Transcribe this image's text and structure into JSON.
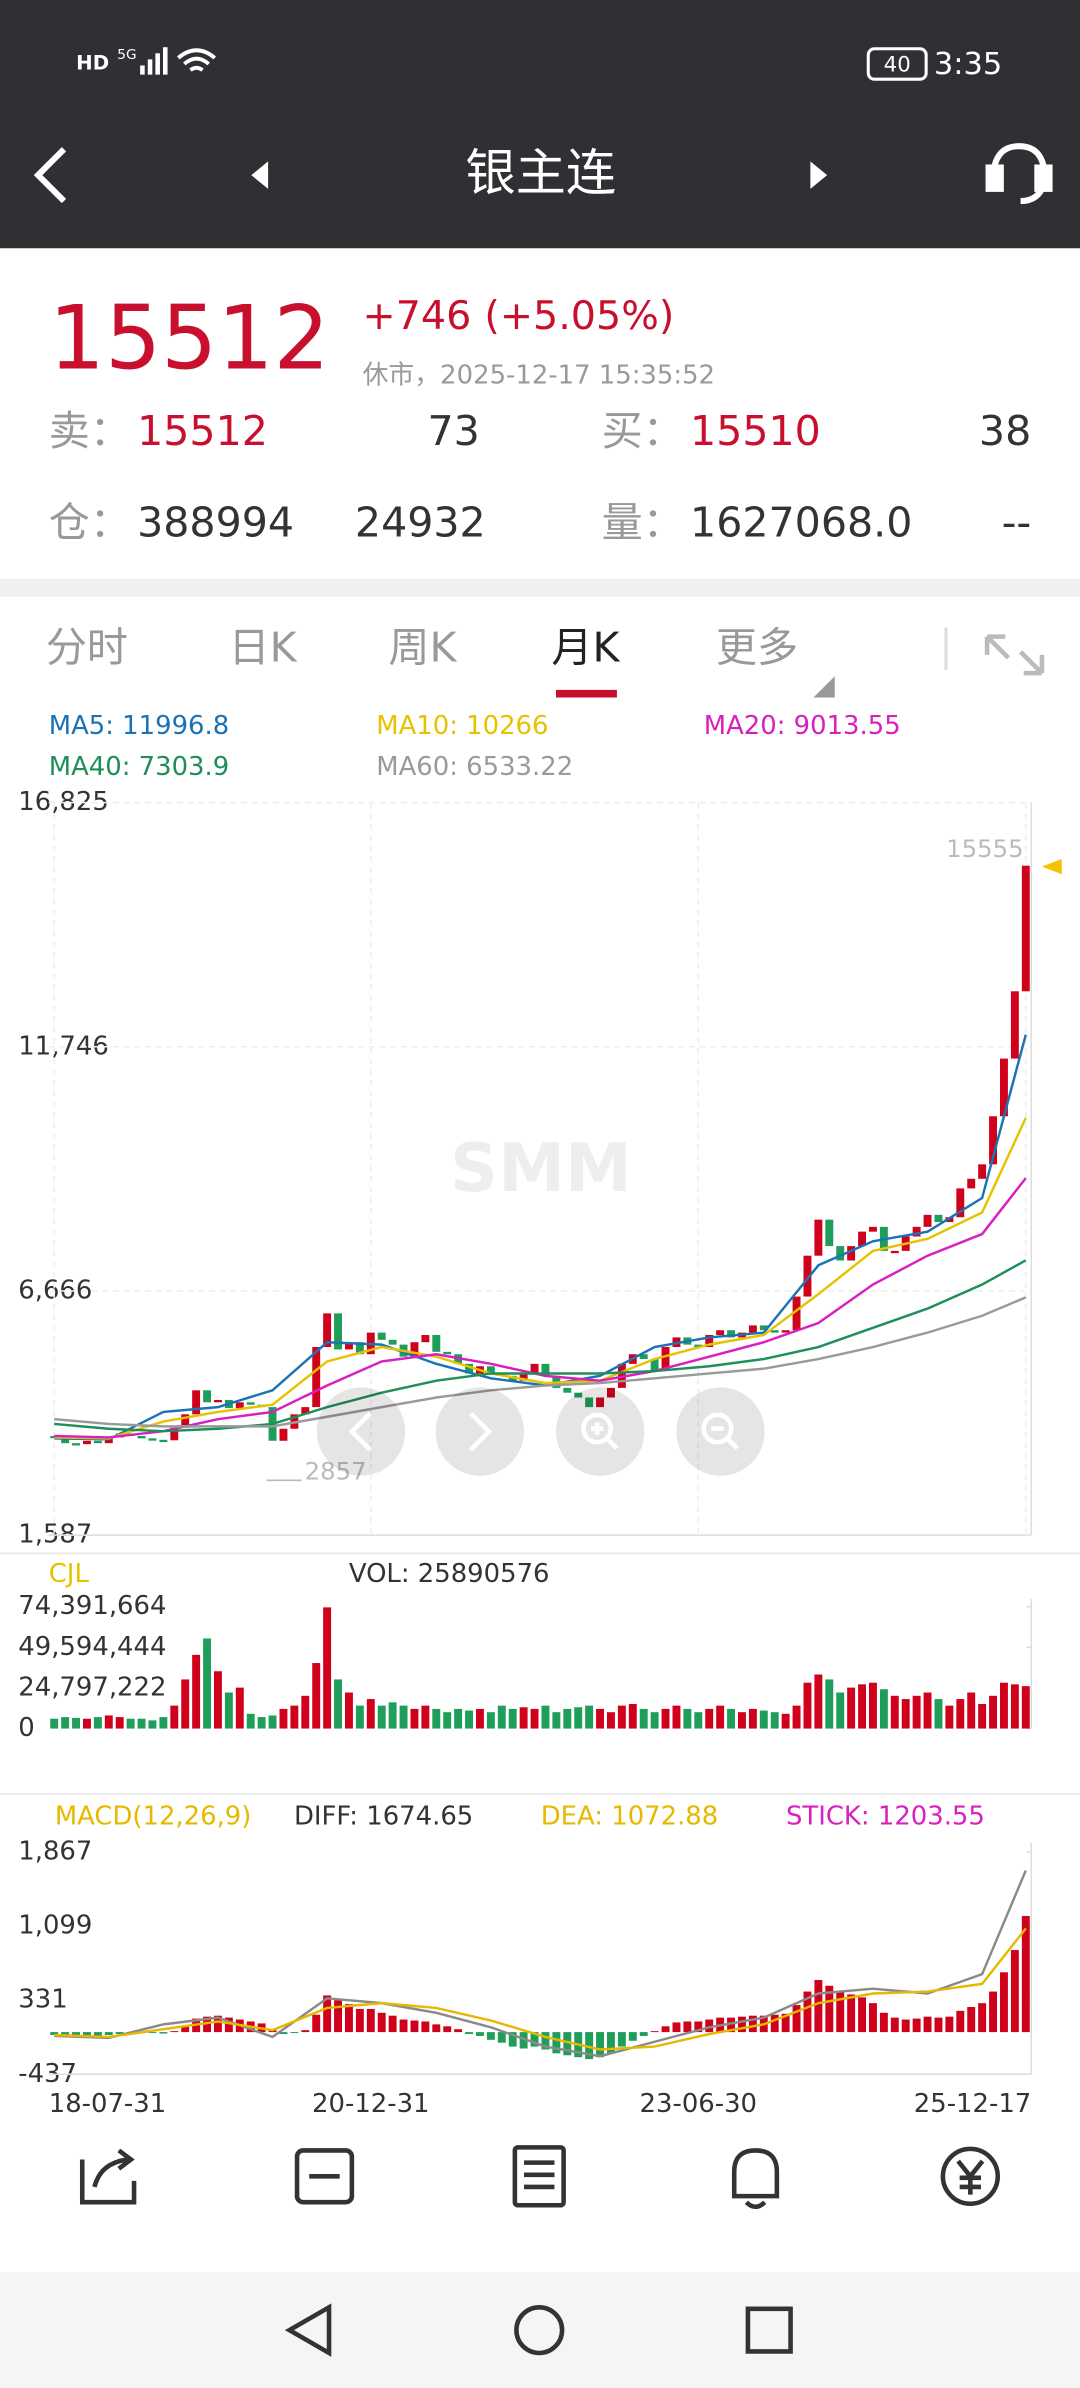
{
  "status_bar": {
    "left": "HD",
    "network": "5G",
    "battery": "40",
    "time": "3:35"
  },
  "header": {
    "title": "银主连"
  },
  "quote": {
    "last": 15512,
    "change": "+746",
    "change_pct": "(+5.05%)",
    "time": "休市，2025-12-17 15:35:52",
    "sell_label": "卖：",
    "sell_price": 15512,
    "sell_qty": 73,
    "buy_label": "买：",
    "buy_price": 15510,
    "buy_qty": 38,
    "oi_label": "仓：",
    "oi": 388994,
    "oi_change": 24932,
    "vol_label": "量：",
    "vol": "1627068.0",
    "vol_extra": "--"
  },
  "tabs": {
    "items": [
      "分时",
      "日K",
      "周K",
      "月K",
      "更多"
    ],
    "active": 3
  },
  "watermark": "SMM",
  "chart_data": [
    {
      "type": "candlestick",
      "categories": [
        "18-07-31",
        null,
        null,
        null,
        null,
        null,
        null,
        null,
        null,
        null,
        null,
        null,
        null,
        null,
        null,
        null,
        null,
        null,
        null,
        null,
        null,
        null,
        null,
        null,
        null,
        null,
        null,
        null,
        null,
        "20-12-31",
        null,
        null,
        null,
        null,
        null,
        null,
        null,
        null,
        null,
        null,
        null,
        null,
        null,
        null,
        null,
        null,
        null,
        null,
        null,
        null,
        null,
        null,
        null,
        null,
        null,
        null,
        null,
        null,
        null,
        "23-06-30",
        null,
        null,
        null,
        null,
        null,
        null,
        null,
        null,
        null,
        null,
        null,
        null,
        null,
        null,
        null,
        null,
        null,
        null,
        null,
        null,
        null,
        null,
        null,
        null,
        null,
        null,
        null,
        null,
        null,
        "25-12-17"
      ],
      "close": [
        3650,
        3500,
        3480,
        3550,
        3500,
        3620,
        3700,
        3650,
        3600,
        3570,
        3560,
        3820,
        4100,
        4600,
        4350,
        4400,
        4230,
        4350,
        4300,
        4250,
        3550,
        3800,
        4100,
        4250,
        5500,
        6200,
        5450,
        5600,
        5350,
        5800,
        5650,
        5550,
        5300,
        5600,
        5750,
        5400,
        5350,
        5150,
        4950,
        5100,
        4950,
        4900,
        4800,
        4950,
        5150,
        4900,
        4650,
        4550,
        4450,
        4250,
        4450,
        4650,
        5150,
        5350,
        5250,
        5000,
        5500,
        5700,
        5550,
        5500,
        5750,
        5850,
        5700,
        5800,
        5950,
        5850,
        5800,
        5850,
        6550,
        7400,
        8150,
        7600,
        7300,
        7600,
        7900,
        8000,
        7500,
        7500,
        7800,
        8000,
        8250,
        8100,
        8200,
        8800,
        9000,
        9300,
        10300,
        11500,
        12900,
        15512
      ],
      "up_color": "#d0021b",
      "down_color": "#1e9e5a",
      "ylim": [
        1587,
        16825
      ],
      "yticks": [
        {
          "value": 1587,
          "label": "1,587"
        },
        {
          "value": 6666,
          "label": "6,666"
        },
        {
          "value": 11746,
          "label": "11,746"
        },
        {
          "value": 16825,
          "label": "16,825"
        }
      ],
      "grid": true,
      "annotations": [
        "15555",
        "2857"
      ],
      "series": [
        {
          "name": "MA5",
          "label": "MA5: 11996.8",
          "color": "#1a73b5",
          "x": [
            0,
            5,
            10,
            15,
            20,
            25,
            30,
            35,
            40,
            45,
            50,
            55,
            60,
            65,
            70,
            75,
            80,
            85,
            89
          ],
          "values": [
            3600,
            3580,
            4150,
            4250,
            4600,
            5600,
            5550,
            5150,
            4850,
            4700,
            4900,
            5500,
            5700,
            5800,
            7200,
            7700,
            7900,
            8600,
            11996.8
          ]
        },
        {
          "name": "MA10",
          "label": "MA10: 10266",
          "color": "#e6c200",
          "x": [
            0,
            5,
            10,
            15,
            20,
            25,
            30,
            35,
            40,
            45,
            50,
            55,
            60,
            65,
            70,
            75,
            80,
            85,
            89
          ],
          "values": [
            3620,
            3600,
            3950,
            4150,
            4300,
            5200,
            5500,
            5300,
            4950,
            4750,
            4800,
            5250,
            5550,
            5750,
            6600,
            7500,
            7750,
            8300,
            10266
          ]
        },
        {
          "name": "MA20",
          "label": "MA20: 9013.55",
          "color": "#d81fbf",
          "x": [
            0,
            5,
            10,
            15,
            20,
            25,
            30,
            35,
            40,
            45,
            50,
            55,
            60,
            65,
            70,
            75,
            80,
            85,
            89
          ],
          "values": [
            3650,
            3620,
            3750,
            4000,
            4150,
            4700,
            5200,
            5350,
            5150,
            4900,
            4800,
            5000,
            5300,
            5600,
            6000,
            6800,
            7400,
            7850,
            9013.55
          ]
        },
        {
          "name": "MA40",
          "label": "MA40: 7303.9",
          "color": "#1f8f5a",
          "x": [
            0,
            5,
            10,
            15,
            20,
            25,
            30,
            35,
            40,
            45,
            50,
            55,
            60,
            65,
            70,
            75,
            80,
            85,
            89
          ],
          "values": [
            3900,
            3800,
            3750,
            3800,
            3900,
            4250,
            4550,
            4800,
            4950,
            4950,
            4950,
            5000,
            5100,
            5250,
            5500,
            5900,
            6300,
            6800,
            7303.9
          ]
        },
        {
          "name": "MA60",
          "label": "MA60: 6533.22",
          "color": "#9a9a9a",
          "x": [
            0,
            5,
            10,
            15,
            20,
            25,
            30,
            35,
            40,
            45,
            50,
            55,
            60,
            65,
            70,
            75,
            80,
            85,
            89
          ],
          "values": [
            4000,
            3900,
            3850,
            3850,
            3850,
            4050,
            4250,
            4450,
            4600,
            4700,
            4750,
            4850,
            4950,
            5050,
            5250,
            5500,
            5800,
            6150,
            6533.22
          ]
        }
      ]
    },
    {
      "type": "bar",
      "title": "CJL",
      "subtitle": "VOL: 25890576",
      "values": [
        6000000,
        7000000,
        6500000,
        6000000,
        7000000,
        8000000,
        7000000,
        6000000,
        6000000,
        5000000,
        7000000,
        14000000,
        30000000,
        45000000,
        55000000,
        35000000,
        22000000,
        25000000,
        9000000,
        7000000,
        8000000,
        12000000,
        14000000,
        20000000,
        40000000,
        74000000,
        30000000,
        22000000,
        14000000,
        18000000,
        14000000,
        16000000,
        14000000,
        12000000,
        14000000,
        12000000,
        10000000,
        12000000,
        11000000,
        12000000,
        10000000,
        14000000,
        12000000,
        13000000,
        12000000,
        14000000,
        10000000,
        12000000,
        13000000,
        14000000,
        12000000,
        10000000,
        14000000,
        15000000,
        12000000,
        10000000,
        12000000,
        14000000,
        12000000,
        10000000,
        12000000,
        14000000,
        12000000,
        10000000,
        12000000,
        11000000,
        10000000,
        9000000,
        14000000,
        28000000,
        33000000,
        30000000,
        22000000,
        25000000,
        27000000,
        28000000,
        24000000,
        20000000,
        18000000,
        20000000,
        22000000,
        18000000,
        14000000,
        18000000,
        22000000,
        15000000,
        20000000,
        28000000,
        27000000,
        25890576
      ],
      "ylim": [
        0,
        74391664
      ],
      "yticks": [
        0,
        {
          "value": 24797222,
          "label": "24,797,222"
        },
        {
          "value": 49594444,
          "label": "49,594,444"
        },
        {
          "value": 74391664,
          "label": "74,391,664"
        }
      ]
    },
    {
      "type": "macd",
      "title": "MACD(12,26,9)",
      "stick_label": "STICK: 1203.55",
      "up_color": "#d0021b",
      "down_color": "#1e9e5a",
      "values": [
        -30,
        -40,
        -45,
        -50,
        -40,
        -30,
        -20,
        -15,
        -10,
        -10,
        -15,
        10,
        60,
        140,
        160,
        170,
        150,
        130,
        110,
        90,
        20,
        -20,
        -10,
        20,
        180,
        380,
        330,
        290,
        240,
        240,
        200,
        170,
        130,
        120,
        110,
        80,
        60,
        30,
        -20,
        -40,
        -80,
        -110,
        -150,
        -170,
        -150,
        -180,
        -220,
        -240,
        -260,
        -280,
        -260,
        -220,
        -150,
        -90,
        -40,
        10,
        60,
        100,
        110,
        110,
        130,
        150,
        150,
        160,
        170,
        170,
        180,
        190,
        280,
        420,
        540,
        480,
        420,
        390,
        360,
        300,
        200,
        150,
        130,
        140,
        160,
        150,
        160,
        220,
        260,
        300,
        420,
        620,
        850,
        1203.55
      ],
      "ylim": [
        -437,
        1867
      ],
      "yticks": [
        -437,
        331,
        {
          "value": 1099,
          "label": "1,099"
        },
        {
          "value": 1867,
          "label": "1,867"
        }
      ],
      "series": [
        {
          "name": "DIFF",
          "label": "DIFF: 1674.65",
          "color": "#8a8a8a",
          "x": [
            0,
            5,
            10,
            15,
            20,
            25,
            30,
            35,
            40,
            45,
            50,
            55,
            60,
            65,
            70,
            75,
            80,
            85,
            89
          ],
          "values": [
            -40,
            -60,
            80,
            150,
            -50,
            350,
            300,
            200,
            50,
            -150,
            -250,
            -100,
            50,
            150,
            400,
            450,
            400,
            600,
            1674.65
          ]
        },
        {
          "name": "DEA",
          "label": "DEA: 1072.88",
          "color": "#e6b800",
          "x": [
            0,
            5,
            10,
            15,
            20,
            25,
            30,
            35,
            40,
            45,
            50,
            55,
            60,
            65,
            70,
            75,
            80,
            85,
            89
          ],
          "values": [
            -30,
            -50,
            30,
            110,
            20,
            250,
            300,
            250,
            120,
            -50,
            -180,
            -150,
            -20,
            80,
            300,
            400,
            420,
            500,
            1072.88
          ]
        }
      ]
    }
  ],
  "nav": [
    "分享",
    "取消自选",
    "盘口",
    "预警",
    "交易"
  ]
}
